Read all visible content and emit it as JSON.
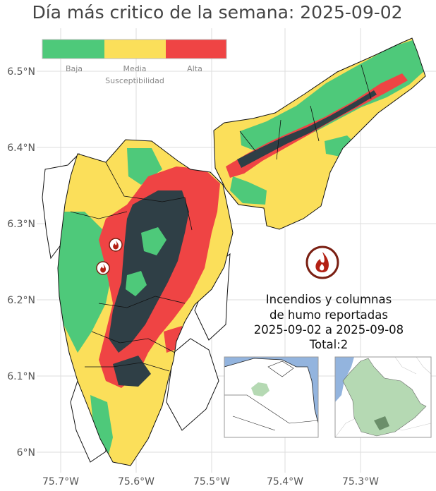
{
  "title": "Día más critico de la semana: 2025-09-02",
  "colors": {
    "low": "#4ec97a",
    "medium": "#fbdf5a",
    "high": "#ef4444",
    "burned": "#2f3f46",
    "sea": "#93b4de",
    "region_highlight": "#b5d9b3"
  },
  "legend": {
    "title": "Susceptibilidad",
    "levels": [
      "Baja",
      "Media",
      "Alta"
    ]
  },
  "axes": {
    "y_ticks": [
      "6.5°N",
      "6.4°N",
      "6.3°N",
      "6.2°N",
      "6.1°N",
      "6°N"
    ],
    "x_ticks": [
      "75.7°W",
      "75.6°W",
      "75.5°W",
      "75.4°W",
      "75.3°W"
    ]
  },
  "fires": {
    "reported_icons": 2,
    "icon": "fire-icon"
  },
  "annotation": {
    "line1": "Incendios y columnas",
    "line2": "de humo reportadas",
    "line3": "2025-09-02 a 2025-09-08",
    "line4": "Total:2"
  },
  "insets": [
    "country-inset-map",
    "department-inset-map"
  ]
}
